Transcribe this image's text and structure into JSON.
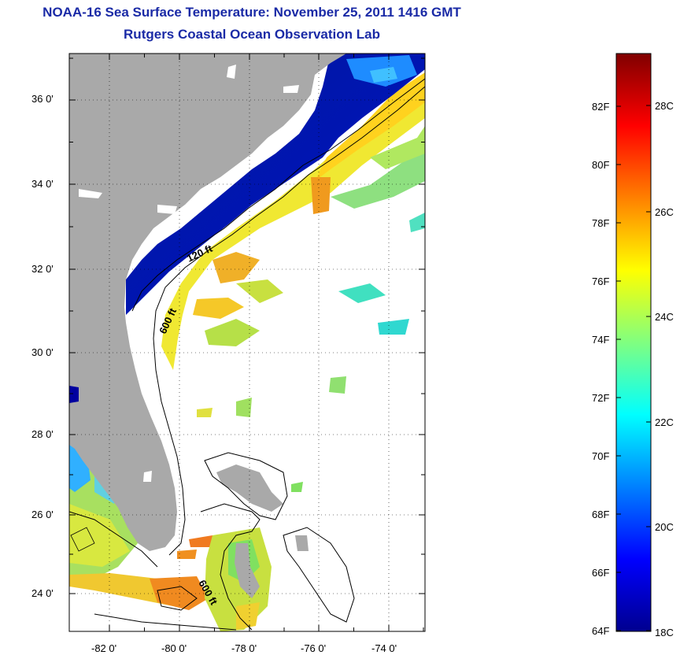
{
  "title": "NOAA-16 Sea Surface Temperature:  November 25, 2011 1416 GMT",
  "subtitle": "Rutgers Coastal Ocean Observation Lab",
  "map": {
    "lat_labels": [
      "36 0'",
      "34 0'",
      "32 0'",
      "30 0'",
      "28 0'",
      "26 0'",
      "24 0'"
    ],
    "lon_labels": [
      "-82 0'",
      "-80 0'",
      "-78 0'",
      "-76 0'",
      "-74 0'"
    ],
    "contours": [
      {
        "label": "120 ft"
      },
      {
        "label": "600 ft"
      },
      {
        "label": "600 ft"
      }
    ],
    "colors": {
      "land": "#a9a9a9",
      "ocean_cloud": "#ffffff"
    }
  },
  "colorbar": {
    "fahrenheit": [
      "82F",
      "80F",
      "78F",
      "76F",
      "74F",
      "72F",
      "70F",
      "68F",
      "66F",
      "64F"
    ],
    "celsius": [
      "28C",
      "26C",
      "24C",
      "22C",
      "20C",
      "18C"
    ],
    "min_f": 64,
    "max_f": 84,
    "colors": [
      "#00008f",
      "#0000ff",
      "#0080ff",
      "#00ffff",
      "#80ff80",
      "#ffff00",
      "#ff8000",
      "#ff0000",
      "#800000"
    ]
  }
}
